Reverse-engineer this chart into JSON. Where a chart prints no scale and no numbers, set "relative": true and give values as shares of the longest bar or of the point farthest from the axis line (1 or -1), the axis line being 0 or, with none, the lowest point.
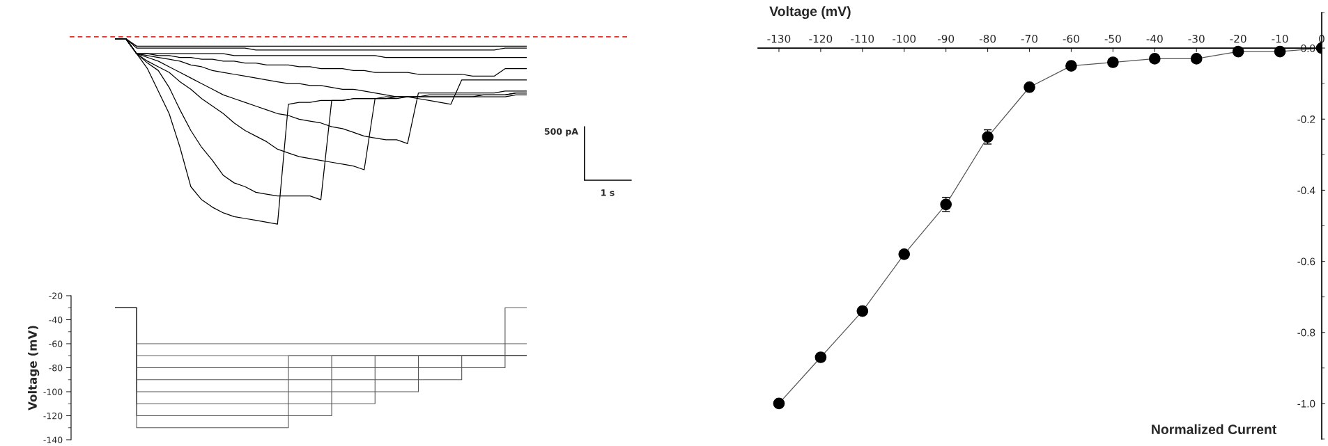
{
  "chart_data": [
    {
      "type": "line",
      "relative": true,
      "tick_labels": false,
      "categories": [
        null,
        null,
        null,
        null,
        null,
        null,
        null,
        null,
        null,
        null,
        null,
        null,
        null,
        null,
        null,
        null,
        null,
        null,
        null,
        null,
        null,
        null,
        null,
        null,
        null,
        null,
        null,
        null,
        null,
        null,
        null,
        null,
        null,
        null,
        null,
        null,
        null,
        null,
        null
      ],
      "annotations": [
        "500 pA",
        "1 s"
      ],
      "ref_lines": [
        {
          "axis": "y",
          "value": 0,
          "color": "#e0302e",
          "line_style": "dashed"
        }
      ],
      "series": [
        {
          "color": "#000000",
          "values": [
            -0.01,
            -0.01,
            -0.09,
            -0.17,
            -0.29,
            -0.41,
            -0.59,
            -0.8,
            -0.87,
            -0.91,
            -0.94,
            -0.96,
            -0.97,
            -0.98,
            -0.99,
            -1,
            -0.36,
            -0.35,
            -0.35,
            -0.34,
            -0.34,
            -0.34,
            -0.33,
            -0.33,
            -0.33,
            -0.32,
            -0.32,
            -0.32,
            -0.32,
            -0.32,
            -0.32,
            -0.32,
            -0.32,
            -0.32,
            -0.32,
            -0.32,
            -0.32,
            -0.31,
            -0.31
          ]
        },
        {
          "color": "#000000",
          "values": [
            -0.01,
            -0.01,
            -0.09,
            -0.14,
            -0.18,
            -0.27,
            -0.39,
            -0.5,
            -0.59,
            -0.66,
            -0.74,
            -0.78,
            -0.8,
            -0.83,
            -0.84,
            -0.85,
            -0.85,
            -0.85,
            -0.85,
            -0.87,
            -0.34,
            -0.34,
            -0.33,
            -0.33,
            -0.33,
            -0.33,
            -0.32,
            -0.32,
            -0.32,
            -0.31,
            -0.31,
            -0.31,
            -0.31,
            -0.31,
            -0.31,
            -0.31,
            -0.31,
            -0.3,
            -0.3
          ]
        },
        {
          "color": "#000000",
          "values": [
            -0.01,
            -0.01,
            -0.09,
            -0.13,
            -0.16,
            -0.19,
            -0.24,
            -0.28,
            -0.33,
            -0.37,
            -0.41,
            -0.46,
            -0.5,
            -0.53,
            -0.56,
            -0.6,
            -0.62,
            -0.64,
            -0.65,
            -0.66,
            -0.67,
            -0.68,
            -0.69,
            -0.71,
            -0.33,
            -0.33,
            -0.33,
            -0.32,
            -0.32,
            -0.32,
            -0.32,
            -0.32,
            -0.32,
            -0.32,
            -0.31,
            -0.31,
            -0.31,
            -0.3,
            -0.3
          ]
        },
        {
          "color": "#000000",
          "values": [
            -0.01,
            -0.01,
            -0.09,
            -0.11,
            -0.13,
            -0.16,
            -0.19,
            -0.22,
            -0.25,
            -0.28,
            -0.31,
            -0.33,
            -0.35,
            -0.37,
            -0.39,
            -0.41,
            -0.42,
            -0.44,
            -0.45,
            -0.46,
            -0.48,
            -0.49,
            -0.51,
            -0.53,
            -0.54,
            -0.55,
            -0.55,
            -0.57,
            -0.3,
            -0.3,
            -0.3,
            -0.3,
            -0.3,
            -0.3,
            -0.3,
            -0.3,
            -0.29,
            -0.29,
            -0.29
          ]
        },
        {
          "color": "#000000",
          "values": [
            -0.01,
            -0.01,
            -0.09,
            -0.1,
            -0.11,
            -0.12,
            -0.13,
            -0.15,
            -0.16,
            -0.18,
            -0.19,
            -0.2,
            -0.21,
            -0.22,
            -0.23,
            -0.24,
            -0.25,
            -0.25,
            -0.26,
            -0.26,
            -0.27,
            -0.28,
            -0.28,
            -0.29,
            -0.3,
            -0.31,
            -0.32,
            -0.32,
            -0.33,
            -0.34,
            -0.35,
            -0.36,
            -0.23,
            -0.23,
            -0.23,
            -0.23,
            -0.23,
            -0.23,
            -0.23
          ]
        },
        {
          "color": "#000000",
          "values": [
            -0.01,
            -0.01,
            -0.09,
            -0.09,
            -0.1,
            -0.1,
            -0.11,
            -0.11,
            -0.12,
            -0.12,
            -0.13,
            -0.13,
            -0.14,
            -0.14,
            -0.15,
            -0.15,
            -0.15,
            -0.16,
            -0.16,
            -0.17,
            -0.17,
            -0.17,
            -0.18,
            -0.18,
            -0.19,
            -0.19,
            -0.19,
            -0.19,
            -0.2,
            -0.2,
            -0.2,
            -0.2,
            -0.2,
            -0.21,
            -0.21,
            -0.21,
            -0.17,
            -0.17,
            -0.17
          ]
        },
        {
          "color": "#000000",
          "values": [
            -0.01,
            -0.01,
            -0.09,
            -0.09,
            -0.09,
            -0.09,
            -0.09,
            -0.09,
            -0.09,
            -0.09,
            -0.09,
            -0.1,
            -0.1,
            -0.1,
            -0.1,
            -0.1,
            -0.1,
            -0.1,
            -0.1,
            -0.1,
            -0.1,
            -0.1,
            -0.1,
            -0.1,
            -0.1,
            -0.11,
            -0.11,
            -0.11,
            -0.11,
            -0.11,
            -0.11,
            -0.11,
            -0.11,
            -0.11,
            -0.11,
            -0.11,
            -0.11,
            -0.11,
            -0.11
          ]
        },
        {
          "color": "#000000",
          "values": [
            -0.01,
            -0.01,
            -0.06,
            -0.06,
            -0.06,
            -0.06,
            -0.06,
            -0.06,
            -0.06,
            -0.06,
            -0.06,
            -0.06,
            -0.06,
            -0.07,
            -0.07,
            -0.07,
            -0.07,
            -0.07,
            -0.07,
            -0.07,
            -0.07,
            -0.07,
            -0.07,
            -0.07,
            -0.07,
            -0.07,
            -0.07,
            -0.07,
            -0.07,
            -0.07,
            -0.07,
            -0.07,
            -0.07,
            -0.07,
            -0.07,
            -0.07,
            -0.06,
            -0.06,
            -0.06
          ]
        },
        {
          "color": "#000000",
          "values": [
            -0.01,
            -0.01,
            -0.05,
            -0.05,
            -0.05,
            -0.05,
            -0.05,
            -0.05,
            -0.05,
            -0.05,
            -0.05,
            -0.05,
            -0.05,
            -0.05,
            -0.05,
            -0.05,
            -0.05,
            -0.05,
            -0.05,
            -0.05,
            -0.05,
            -0.05,
            -0.05,
            -0.05,
            -0.05,
            -0.05,
            -0.05,
            -0.05,
            -0.05,
            -0.05,
            -0.05,
            -0.05,
            -0.05,
            -0.05,
            -0.05,
            -0.05,
            -0.05,
            -0.05,
            -0.05
          ]
        }
      ]
    },
    {
      "type": "step",
      "ylim": [
        -140,
        -20
      ],
      "yticks": [
        -20,
        -40,
        -60,
        -80,
        -100,
        -120,
        -140
      ],
      "ylabel": "Voltage (mV)",
      "tick_labels": "y",
      "categories": [
        null,
        null,
        null,
        null,
        null,
        null,
        null,
        null,
        null,
        null,
        null,
        null,
        null,
        null,
        null,
        null,
        null,
        null,
        null,
        null,
        null,
        null,
        null,
        null,
        null,
        null,
        null,
        null,
        null,
        null,
        null,
        null,
        null,
        null,
        null,
        null,
        null,
        null,
        null
      ],
      "series": [
        {
          "color": "#555555",
          "values": [
            -30,
            -30,
            -60,
            -60,
            -60,
            -60,
            -60,
            -60,
            -60,
            -60,
            -60,
            -60,
            -60,
            -60,
            -60,
            -60,
            -60,
            -60,
            -60,
            -60,
            -60,
            -60,
            -60,
            -60,
            -60,
            -60,
            -60,
            -60,
            -60,
            -60,
            -60,
            -60,
            -60,
            -60,
            -60,
            -60,
            -60,
            -60,
            -60
          ]
        },
        {
          "color": "#555555",
          "values": [
            -30,
            -30,
            -70,
            -70,
            -70,
            -70,
            -70,
            -70,
            -70,
            -70,
            -70,
            -70,
            -70,
            -70,
            -70,
            -70,
            -70,
            -70,
            -70,
            -70,
            -70,
            -70,
            -70,
            -70,
            -70,
            -70,
            -70,
            -70,
            -70,
            -70,
            -70,
            -70,
            -70,
            -70,
            -70,
            -70,
            -70,
            -70,
            -70
          ]
        },
        {
          "color": "#555555",
          "values": [
            -30,
            -30,
            -80,
            -80,
            -80,
            -80,
            -80,
            -80,
            -80,
            -80,
            -80,
            -80,
            -80,
            -80,
            -80,
            -80,
            -80,
            -80,
            -80,
            -80,
            -80,
            -80,
            -80,
            -80,
            -80,
            -80,
            -80,
            -80,
            -80,
            -80,
            -80,
            -80,
            -80,
            -80,
            -80,
            -80,
            -30,
            -30,
            -30
          ]
        },
        {
          "color": "#555555",
          "values": [
            -30,
            -30,
            -90,
            -90,
            -90,
            -90,
            -90,
            -90,
            -90,
            -90,
            -90,
            -90,
            -90,
            -90,
            -90,
            -90,
            -90,
            -90,
            -90,
            -90,
            -90,
            -90,
            -90,
            -90,
            -90,
            -90,
            -90,
            -90,
            -90,
            -90,
            -90,
            -90,
            -70,
            -70,
            -70,
            -70,
            -70,
            -70,
            -70
          ]
        },
        {
          "color": "#555555",
          "values": [
            -30,
            -30,
            -100,
            -100,
            -100,
            -100,
            -100,
            -100,
            -100,
            -100,
            -100,
            -100,
            -100,
            -100,
            -100,
            -100,
            -100,
            -100,
            -100,
            -100,
            -100,
            -100,
            -100,
            -100,
            -100,
            -100,
            -100,
            -100,
            -70,
            -70,
            -70,
            -70,
            -70,
            -70,
            -70,
            -70,
            -70,
            -70,
            -70
          ]
        },
        {
          "color": "#555555",
          "values": [
            -30,
            -30,
            -110,
            -110,
            -110,
            -110,
            -110,
            -110,
            -110,
            -110,
            -110,
            -110,
            -110,
            -110,
            -110,
            -110,
            -110,
            -110,
            -110,
            -110,
            -110,
            -110,
            -110,
            -110,
            -70,
            -70,
            -70,
            -70,
            -70,
            -70,
            -70,
            -70,
            -70,
            -70,
            -70,
            -70,
            -70,
            -70,
            -70
          ]
        },
        {
          "color": "#555555",
          "values": [
            -30,
            -30,
            -120,
            -120,
            -120,
            -120,
            -120,
            -120,
            -120,
            -120,
            -120,
            -120,
            -120,
            -120,
            -120,
            -120,
            -120,
            -120,
            -120,
            -120,
            -70,
            -70,
            -70,
            -70,
            -70,
            -70,
            -70,
            -70,
            -70,
            -70,
            -70,
            -70,
            -70,
            -70,
            -70,
            -70,
            -70,
            -70,
            -70
          ]
        },
        {
          "color": "#555555",
          "values": [
            -30,
            -30,
            -130,
            -130,
            -130,
            -130,
            -130,
            -130,
            -130,
            -130,
            -130,
            -130,
            -130,
            -130,
            -130,
            -130,
            -70,
            -70,
            -70,
            -70,
            -70,
            -70,
            -70,
            -70,
            -70,
            -70,
            -70,
            -70,
            -70,
            -70,
            -70,
            -70,
            -70,
            -70,
            -70,
            -70,
            -70,
            -70,
            -70
          ]
        }
      ]
    },
    {
      "type": "line",
      "marker": "circle",
      "xlabel": "Voltage (mV)",
      "ylabel": "Normalized Current",
      "xlim": [
        -135,
        0
      ],
      "ylim": [
        -1.1,
        0.1
      ],
      "xticks": [
        -130,
        -120,
        -110,
        -100,
        -90,
        -80,
        -70,
        -60,
        -50,
        -40,
        -30,
        -20,
        -10,
        0
      ],
      "yticks": [
        {
          "value": 0,
          "label": "0.0"
        },
        -0.2,
        -0.4,
        -0.6,
        -0.8,
        {
          "value": -1,
          "label": "-1.0"
        }
      ],
      "x": [
        -130,
        -120,
        -110,
        -100,
        -90,
        -80,
        -70,
        -60,
        -50,
        -40,
        -30,
        -20,
        -10,
        0
      ],
      "series": [
        {
          "color": "#000000",
          "values": [
            -1.0,
            -0.87,
            -0.74,
            -0.58,
            -0.44,
            -0.25,
            -0.11,
            -0.05,
            -0.04,
            -0.03,
            -0.03,
            -0.01,
            -0.01,
            0.0
          ],
          "errors": [
            null,
            null,
            null,
            null,
            0.02,
            0.02,
            0.01,
            0.01,
            null,
            null,
            null,
            null,
            null,
            null
          ]
        }
      ]
    }
  ]
}
